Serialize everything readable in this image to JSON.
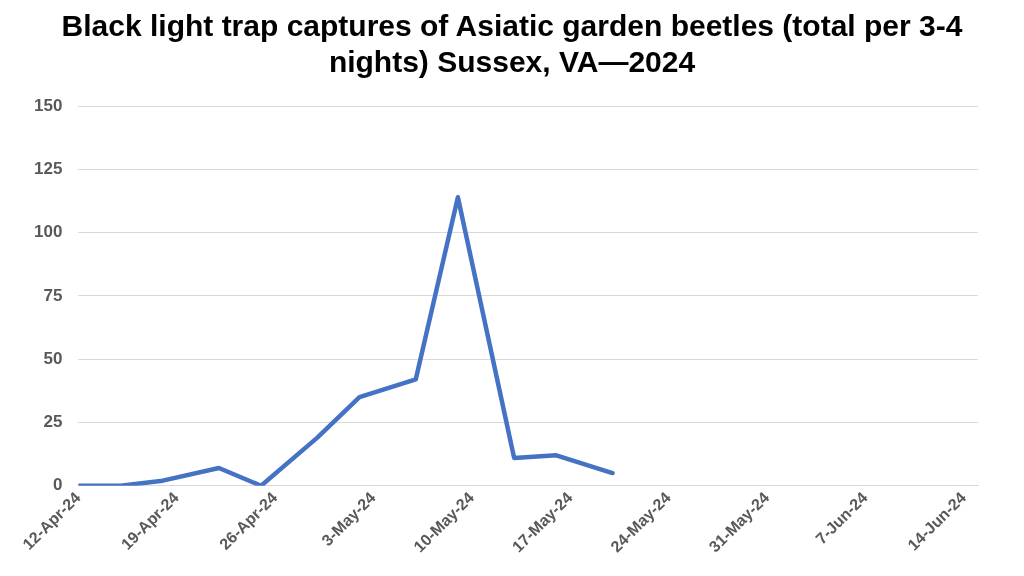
{
  "chart_data": {
    "type": "line",
    "title": "Black light trap captures of Asiatic garden beetles (total per 3-4 nights) Sussex, VA—2024",
    "x": [
      "2024-04-12",
      "2024-04-15",
      "2024-04-18",
      "2024-04-22",
      "2024-04-25",
      "2024-04-29",
      "2024-05-02",
      "2024-05-06",
      "2024-05-09",
      "2024-05-13",
      "2024-05-16",
      "2024-05-20"
    ],
    "series": [
      {
        "color": "#4472c4",
        "values": [
          0,
          0,
          2,
          7,
          0,
          19,
          35,
          42,
          114,
          11,
          12,
          5
        ]
      }
    ],
    "xlim": [
      "2024-04-12",
      "2024-06-15"
    ],
    "xticks": [
      {
        "value": "2024-04-12",
        "label": "12-Apr-24"
      },
      {
        "value": "2024-04-19",
        "label": "19-Apr-24"
      },
      {
        "value": "2024-04-26",
        "label": "26-Apr-24"
      },
      {
        "value": "2024-05-03",
        "label": "3-May-24"
      },
      {
        "value": "2024-05-10",
        "label": "10-May-24"
      },
      {
        "value": "2024-05-17",
        "label": "17-May-24"
      },
      {
        "value": "2024-05-24",
        "label": "24-May-24"
      },
      {
        "value": "2024-05-31",
        "label": "31-May-24"
      },
      {
        "value": "2024-06-07",
        "label": "7-Jun-24"
      },
      {
        "value": "2024-06-14",
        "label": "14-Jun-24"
      }
    ],
    "ylim": [
      0,
      150
    ],
    "yticks": [
      0,
      25,
      50,
      75,
      100,
      125,
      150
    ],
    "grid": "y",
    "legend": false,
    "marker": "none",
    "line_style": "solid"
  }
}
